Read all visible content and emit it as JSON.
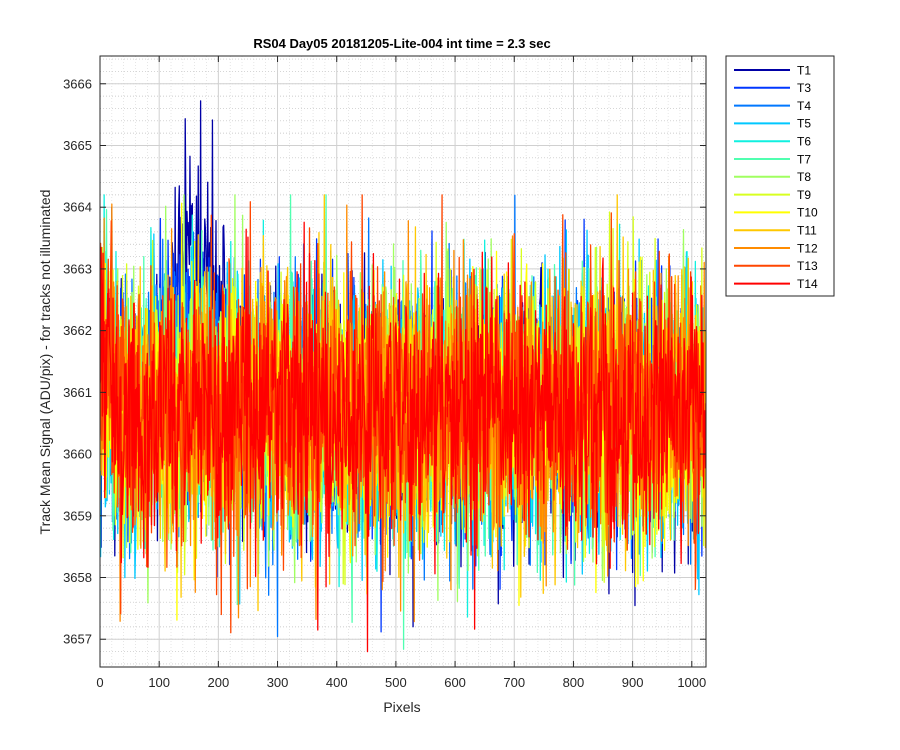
{
  "chart_data": {
    "type": "line",
    "title": "RS04 Day05 20181205-Lite-004 int time = 2.3 sec",
    "xlabel": "Pixels",
    "ylabel": "Track Mean Signal (ADU/pix) - for tracks not illuminated",
    "xlim": [
      0,
      1024
    ],
    "ylim": [
      3656.55,
      3666.45
    ],
    "xticks": [
      0,
      100,
      200,
      300,
      400,
      500,
      600,
      700,
      800,
      900,
      1000
    ],
    "yticks": [
      3657,
      3658,
      3659,
      3660,
      3661,
      3662,
      3663,
      3664,
      3665,
      3666
    ],
    "grid": true,
    "minor_grid": true,
    "legend_position": "outside-top-right",
    "n_points": 1024,
    "series": [
      {
        "name": "T1",
        "color": "#0000a6",
        "mean": 3660.7,
        "noise_range": [
          3658.0,
          3663.0
        ],
        "bump": {
          "x_range": [
            90,
            230
          ],
          "peak": 3666.4
        }
      },
      {
        "name": "T3",
        "color": "#0037ff",
        "mean": 3660.7,
        "noise_range": [
          3658.0,
          3663.0
        ],
        "bump": {
          "x_range": [
            60,
            200
          ],
          "peak": 3665.3
        }
      },
      {
        "name": "T4",
        "color": "#0078ff",
        "mean": 3660.7,
        "noise_range": [
          3658.0,
          3663.0
        ]
      },
      {
        "name": "T5",
        "color": "#00c8ff",
        "mean": 3660.7,
        "noise_range": [
          3658.0,
          3663.0
        ]
      },
      {
        "name": "T6",
        "color": "#10f0e0",
        "mean": 3660.7,
        "noise_range": [
          3658.0,
          3663.0
        ]
      },
      {
        "name": "T7",
        "color": "#50ffb0",
        "mean": 3660.7,
        "noise_range": [
          3658.0,
          3663.0
        ]
      },
      {
        "name": "T8",
        "color": "#a0ff60",
        "mean": 3660.7,
        "noise_range": [
          3658.0,
          3663.0
        ]
      },
      {
        "name": "T9",
        "color": "#d8ff20",
        "mean": 3660.7,
        "noise_range": [
          3658.0,
          3663.0
        ]
      },
      {
        "name": "T10",
        "color": "#ffff00",
        "mean": 3660.7,
        "noise_range": [
          3658.0,
          3663.0
        ]
      },
      {
        "name": "T11",
        "color": "#ffc800",
        "mean": 3660.7,
        "noise_range": [
          3658.0,
          3663.0
        ]
      },
      {
        "name": "T12",
        "color": "#ff8c00",
        "mean": 3660.7,
        "noise_range": [
          3658.0,
          3663.0
        ]
      },
      {
        "name": "T13",
        "color": "#ff4600",
        "mean": 3660.7,
        "noise_range": [
          3658.0,
          3663.0
        ]
      },
      {
        "name": "T14",
        "color": "#ff0000",
        "mean": 3660.7,
        "noise_range": [
          3658.0,
          3663.0
        ]
      }
    ]
  }
}
